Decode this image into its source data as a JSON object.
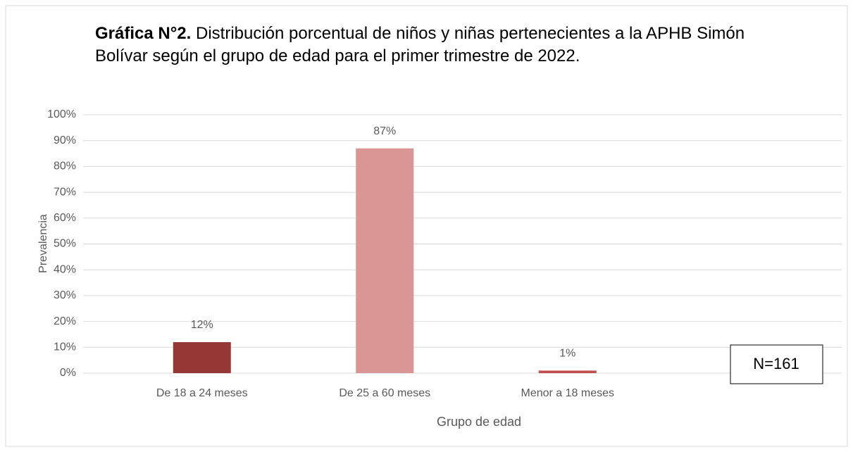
{
  "chart_data": {
    "type": "bar",
    "title_lead": "Gráfica N°2.",
    "title": "Distribución porcentual de niños y niñas pertenecientes a la APHB Simón Bolívar según el grupo de edad para el primer trimestre de 2022.",
    "x_label": "Grupo de edad",
    "y_label": "Prevalencia",
    "categories": [
      "De 18 a 24 meses",
      "De 25 a 60 meses",
      "Menor a 18 meses"
    ],
    "values": [
      12,
      87,
      1
    ],
    "value_labels": [
      "12%",
      "87%",
      "1%"
    ],
    "colors": [
      "#953735",
      "#d99694",
      "#c0504d"
    ],
    "ylim": [
      0,
      100
    ],
    "yticks": [
      {
        "value": 0,
        "label": "0%"
      },
      {
        "value": 10,
        "label": "10%"
      },
      {
        "value": 20,
        "label": "20%"
      },
      {
        "value": 30,
        "label": "30%"
      },
      {
        "value": 40,
        "label": "40%"
      },
      {
        "value": 50,
        "label": "50%"
      },
      {
        "value": 60,
        "label": "60%"
      },
      {
        "value": 70,
        "label": "70%"
      },
      {
        "value": 80,
        "label": "80%"
      },
      {
        "value": 90,
        "label": "90%"
      },
      {
        "value": 100,
        "label": "100%"
      }
    ],
    "grid": true,
    "annotation": "N=161"
  }
}
